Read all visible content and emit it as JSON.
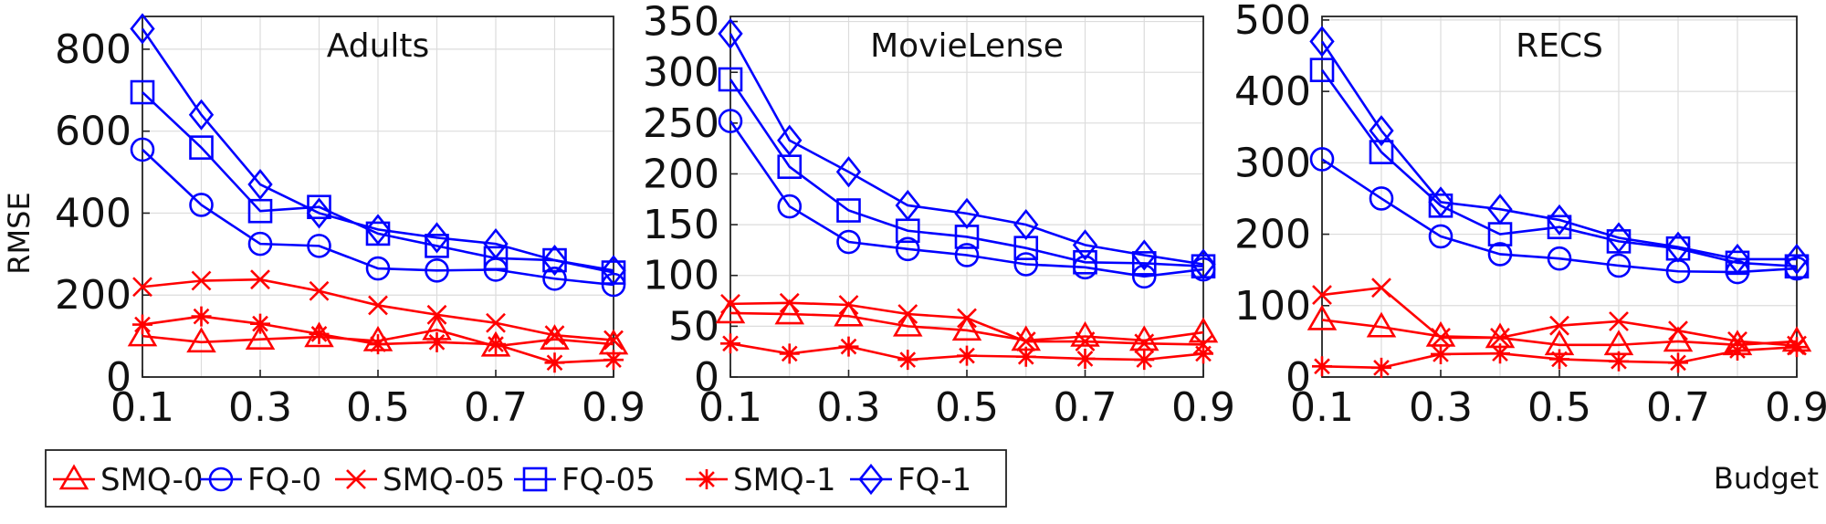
{
  "chart_data": [
    {
      "type": "line",
      "title": "Adults",
      "ylabel": "RMSE",
      "xlabel": "",
      "ylim": [
        0,
        880
      ],
      "yticks": [
        0,
        200,
        400,
        600,
        800
      ],
      "xlim": [
        0.1,
        0.9
      ],
      "xticks": [
        "0.1",
        "0.3",
        "0.5",
        "0.7",
        "0.9"
      ],
      "grid": true,
      "x": [
        0.1,
        0.2,
        0.3,
        0.4,
        0.5,
        0.6,
        0.7,
        0.8,
        0.9
      ],
      "series": [
        {
          "name": "SMQ-0",
          "values": [
            100,
            85,
            92,
            98,
            88,
            115,
            75,
            92,
            80
          ]
        },
        {
          "name": "FQ-0",
          "values": [
            555,
            420,
            325,
            320,
            265,
            260,
            262,
            240,
            225
          ]
        },
        {
          "name": "SMQ-05",
          "values": [
            220,
            235,
            238,
            210,
            175,
            152,
            132,
            102,
            90
          ]
        },
        {
          "name": "FQ-05",
          "values": [
            695,
            560,
            405,
            415,
            350,
            320,
            290,
            285,
            255
          ]
        },
        {
          "name": "SMQ-1",
          "values": [
            128,
            148,
            130,
            105,
            80,
            85,
            80,
            35,
            42
          ]
        },
        {
          "name": "FQ-1",
          "values": [
            850,
            640,
            470,
            400,
            360,
            340,
            325,
            285,
            260
          ]
        }
      ]
    },
    {
      "type": "line",
      "title": "MovieLense",
      "ylabel": "",
      "xlabel": "",
      "ylim": [
        0,
        355
      ],
      "yticks": [
        0,
        50,
        100,
        150,
        200,
        250,
        300,
        350
      ],
      "xlim": [
        0.1,
        0.9
      ],
      "xticks": [
        "0.1",
        "0.3",
        "0.5",
        "0.7",
        "0.9"
      ],
      "grid": true,
      "x": [
        0.1,
        0.2,
        0.3,
        0.4,
        0.5,
        0.6,
        0.7,
        0.8,
        0.9
      ],
      "series": [
        {
          "name": "SMQ-0",
          "values": [
            63,
            62,
            60,
            50,
            46,
            36,
            40,
            36,
            44
          ]
        },
        {
          "name": "FQ-0",
          "values": [
            252,
            168,
            133,
            126,
            120,
            111,
            108,
            99,
            106
          ]
        },
        {
          "name": "SMQ-05",
          "values": [
            72,
            73,
            71,
            62,
            58,
            35,
            35,
            33,
            32
          ]
        },
        {
          "name": "FQ-05",
          "values": [
            293,
            207,
            164,
            144,
            138,
            127,
            113,
            112,
            109
          ]
        },
        {
          "name": "SMQ-1",
          "values": [
            33,
            23,
            30,
            17,
            21,
            20,
            18,
            17,
            23
          ]
        },
        {
          "name": "FQ-1",
          "values": [
            338,
            233,
            202,
            169,
            161,
            150,
            130,
            120,
            111
          ]
        }
      ]
    },
    {
      "type": "line",
      "title": "RECS",
      "ylabel": "",
      "xlabel": "Budget",
      "ylim": [
        0,
        505
      ],
      "yticks": [
        0,
        100,
        200,
        300,
        400,
        500
      ],
      "xlim": [
        0.1,
        0.9
      ],
      "xticks": [
        "0.1",
        "0.3",
        "0.5",
        "0.7",
        "0.9"
      ],
      "grid": true,
      "x": [
        0.1,
        0.2,
        0.3,
        0.4,
        0.5,
        0.6,
        0.7,
        0.8,
        0.9
      ],
      "series": [
        {
          "name": "SMQ-0",
          "values": [
            80,
            70,
            57,
            55,
            45,
            45,
            50,
            45,
            50
          ]
        },
        {
          "name": "FQ-0",
          "values": [
            305,
            250,
            197,
            172,
            166,
            156,
            148,
            147,
            152
          ]
        },
        {
          "name": "SMQ-05",
          "values": [
            115,
            125,
            55,
            55,
            72,
            78,
            65,
            50,
            44
          ]
        },
        {
          "name": "FQ-05",
          "values": [
            430,
            315,
            240,
            200,
            210,
            190,
            180,
            160,
            155
          ]
        },
        {
          "name": "SMQ-1",
          "values": [
            15,
            13,
            32,
            33,
            25,
            22,
            20,
            37,
            42
          ]
        },
        {
          "name": "FQ-1",
          "values": [
            470,
            345,
            245,
            235,
            220,
            195,
            182,
            165,
            165
          ]
        }
      ]
    }
  ],
  "legend": {
    "placement": "bottom-left",
    "items": [
      {
        "label": "SMQ-0",
        "color": "#ff0000",
        "marker": "triangle"
      },
      {
        "label": "FQ-0",
        "color": "#0000ff",
        "marker": "circle"
      },
      {
        "label": "SMQ-05",
        "color": "#ff0000",
        "marker": "x"
      },
      {
        "label": "FQ-05",
        "color": "#0000ff",
        "marker": "square"
      },
      {
        "label": "SMQ-1",
        "color": "#ff0000",
        "marker": "asterisk"
      },
      {
        "label": "FQ-1",
        "color": "#0000ff",
        "marker": "diamond"
      }
    ]
  }
}
